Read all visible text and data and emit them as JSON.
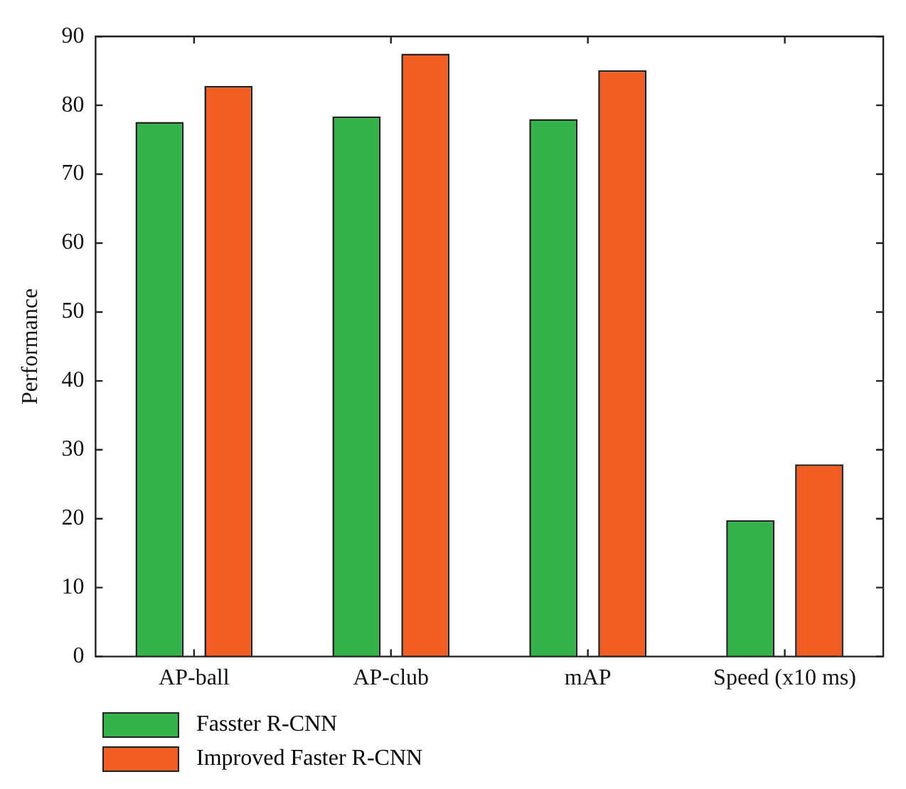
{
  "chart_data": {
    "type": "bar",
    "ylabel": "Performance",
    "categories": [
      "AP-ball",
      "AP-club",
      "mAP",
      "Speed (x10 ms)"
    ],
    "series": [
      {
        "name": "Fasster R-CNN",
        "color": "#33b34a",
        "values": [
          77.6,
          78.4,
          78.0,
          19.8
        ]
      },
      {
        "name": "Improved Faster R-CNN",
        "color": "#f15d22",
        "values": [
          82.8,
          87.5,
          85.1,
          27.9
        ]
      }
    ],
    "ylim": [
      0,
      90
    ],
    "yticks": [
      0,
      10,
      20,
      30,
      40,
      50,
      60,
      70,
      80,
      90
    ],
    "grid": false,
    "legend": "bottom left"
  }
}
